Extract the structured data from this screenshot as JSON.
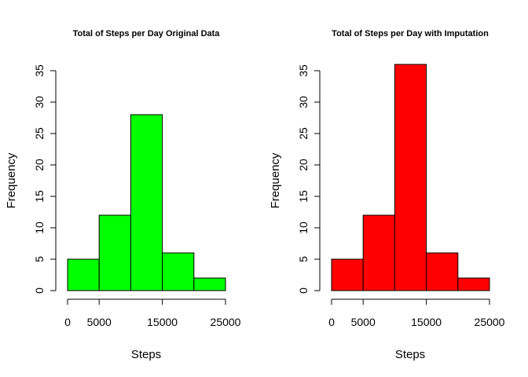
{
  "chart_data": [
    {
      "type": "bar",
      "title": "Total of Steps per Day Original Data",
      "xlabel": "Steps",
      "ylabel": "Frequency",
      "bins": [
        [
          0,
          5000
        ],
        [
          5000,
          10000
        ],
        [
          10000,
          15000
        ],
        [
          15000,
          20000
        ],
        [
          20000,
          25000
        ]
      ],
      "values": [
        5,
        12,
        28,
        6,
        2
      ],
      "color": "#00ff00",
      "xlim": [
        0,
        25000
      ],
      "ylim": [
        0,
        35
      ],
      "xticks": [
        "0",
        "5000",
        "15000",
        "25000"
      ],
      "xtick_values": [
        0,
        5000,
        15000,
        25000
      ],
      "yticks": [
        "0",
        "5",
        "10",
        "15",
        "20",
        "25",
        "30",
        "35"
      ],
      "ytick_values": [
        0,
        5,
        10,
        15,
        20,
        25,
        30,
        35
      ],
      "grid": false
    },
    {
      "type": "bar",
      "title": "Total of Steps per Day with Imputation",
      "xlabel": "Steps",
      "ylabel": "Frequency",
      "bins": [
        [
          0,
          5000
        ],
        [
          5000,
          10000
        ],
        [
          10000,
          15000
        ],
        [
          15000,
          20000
        ],
        [
          20000,
          25000
        ]
      ],
      "values": [
        5,
        12,
        36,
        6,
        2
      ],
      "color": "#ff0000",
      "xlim": [
        0,
        25000
      ],
      "ylim": [
        0,
        35
      ],
      "xticks": [
        "0",
        "5000",
        "15000",
        "25000"
      ],
      "xtick_values": [
        0,
        5000,
        15000,
        25000
      ],
      "yticks": [
        "0",
        "5",
        "10",
        "15",
        "20",
        "25",
        "30",
        "35"
      ],
      "ytick_values": [
        0,
        5,
        10,
        15,
        20,
        25,
        30,
        35
      ],
      "grid": false
    }
  ]
}
